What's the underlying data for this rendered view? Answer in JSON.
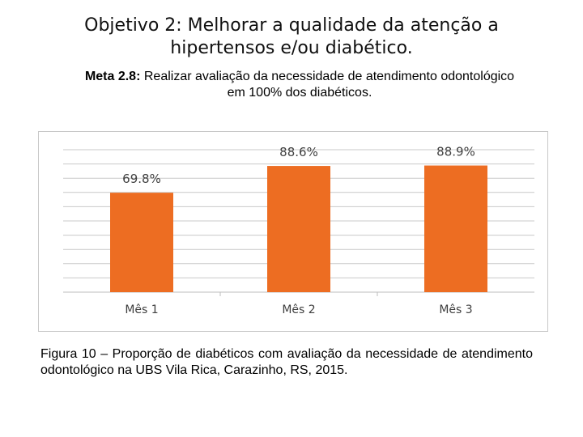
{
  "slide": {
    "title_line1": "Objetivo 2: Melhorar a qualidade da atenção a",
    "title_line2": "hipertensos e/ou diabético.",
    "meta_label": "Meta 2.8:",
    "meta_text_line1": "Realizar avaliação da necessidade de atendimento odontológico",
    "meta_text_line2": "em 100% dos diabéticos.",
    "caption": "Figura 10 – Proporção de diabéticos com avaliação da necessidade de atendimento odontológico na UBS Vila Rica, Carazinho, RS, 2015."
  },
  "chart_data": {
    "type": "bar",
    "categories": [
      "Mês 1",
      "Mês 2",
      "Mês 3"
    ],
    "values": [
      69.8,
      88.6,
      88.9
    ],
    "data_labels": [
      "69.8%",
      "88.6%",
      "88.9%"
    ],
    "ylim": [
      0,
      100
    ],
    "grid": true,
    "legend": "none",
    "colors": {
      "bar": "#ED6D22",
      "grid": "#c9c9c9",
      "text": "#404040"
    }
  }
}
